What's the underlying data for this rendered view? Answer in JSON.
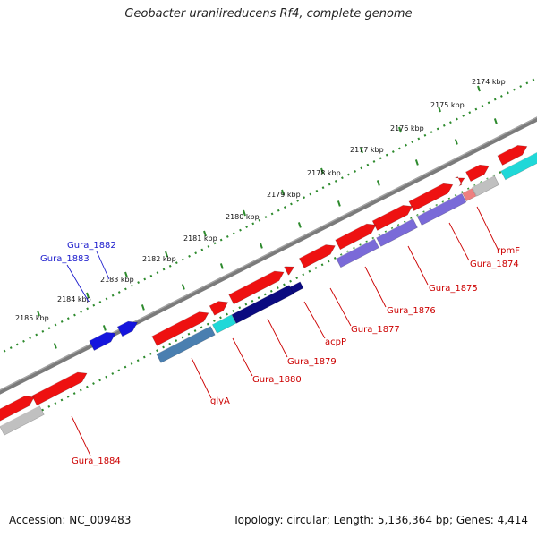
{
  "title": "Geobacter uraniireducens Rf4, complete genome",
  "footer": {
    "accession": "Accession: NC_009483",
    "summary": "Topology: circular; Length: 5,136,364 bp; Genes: 4,414"
  },
  "colors": {
    "backbone": "#7b7b7b",
    "ruler_dots": "#2d8a2d",
    "forward_cds": "#ee1111",
    "reverse_cds": "#1515dd",
    "gene_label_red": "#cc0000",
    "gene_label_blue": "#1a1acc",
    "cyan": "#20d8d8",
    "steel_blue": "#4a7fb0",
    "slate_blue": "#7a6ad8",
    "navy": "#0b0b80",
    "grey": "#c0c0c0",
    "pink": "#ee8080"
  },
  "ruler_labels": [
    "2174 kbp",
    "2175 kbp",
    "2176 kbp",
    "2177 kbp",
    "2178 kbp",
    "2179 kbp",
    "2180 kbp",
    "2181 kbp",
    "2182 kbp",
    "2183 kbp",
    "2184 kbp",
    "2185 kbp"
  ],
  "gene_labels": [
    {
      "name": "Gura_1882",
      "color": "blue"
    },
    {
      "name": "Gura_1883",
      "color": "blue"
    },
    {
      "name": "rpmF",
      "color": "red"
    },
    {
      "name": "Gura_1874",
      "color": "red"
    },
    {
      "name": "Gura_1875",
      "color": "red"
    },
    {
      "name": "Gura_1876",
      "color": "red"
    },
    {
      "name": "Gura_1877",
      "color": "red"
    },
    {
      "name": "acpP",
      "color": "red"
    },
    {
      "name": "Gura_1879",
      "color": "red"
    },
    {
      "name": "Gura_1880",
      "color": "red"
    },
    {
      "name": "glyA",
      "color": "red"
    },
    {
      "name": "Gura_1884",
      "color": "red"
    }
  ]
}
